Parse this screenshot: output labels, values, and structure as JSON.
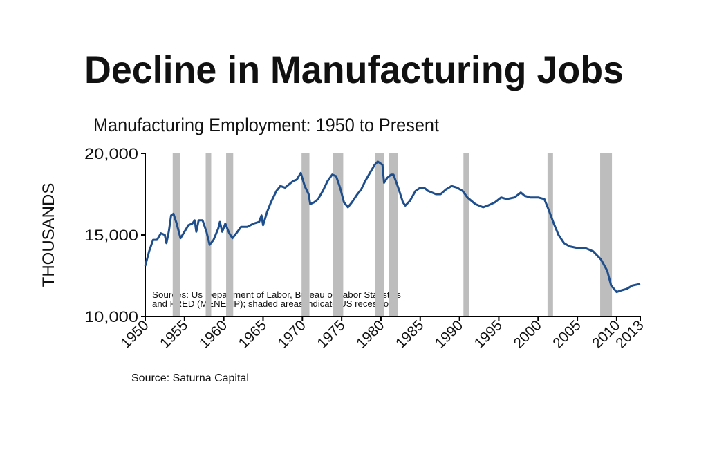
{
  "chart_data": {
    "type": "line",
    "title": "Decline in Manufacturing Jobs",
    "subtitle": "Manufacturing Employment: 1950 to Present",
    "y_label": "THOUSANDS",
    "note": [
      "Sources: Us Department of Labor, Bureau of Labor Statistics",
      "and FRED (MENEMP); shaded areas indicate US recessions"
    ],
    "source": "Source: Saturna Capital",
    "xlim": [
      1950,
      2013
    ],
    "xticks": [
      1950,
      1955,
      1960,
      1965,
      1970,
      1975,
      1980,
      1985,
      1990,
      1995,
      2000,
      2005,
      2010,
      2013
    ],
    "ylim": [
      10000,
      20000
    ],
    "yticks": [
      {
        "value": 10000,
        "label": "10,000"
      },
      {
        "value": 15000,
        "label": "15,000"
      },
      {
        "value": 20000,
        "label": "20,000"
      }
    ],
    "recession_color": "#bdbdbd",
    "recessions": [
      [
        1953.5,
        1954.4
      ],
      [
        1957.7,
        1958.4
      ],
      [
        1960.3,
        1961.2
      ],
      [
        1969.9,
        1970.9
      ],
      [
        1973.9,
        1975.2
      ],
      [
        1979.3,
        1980.4
      ],
      [
        1981.0,
        1982.2
      ],
      [
        1990.5,
        1991.2
      ],
      [
        2001.2,
        2001.9
      ],
      [
        2007.9,
        2009.4
      ]
    ],
    "x": [
      1950,
      1950.5,
      1951,
      1951.5,
      1952,
      1952.5,
      1952.7,
      1953,
      1953.3,
      1953.6,
      1954,
      1954.5,
      1955,
      1955.5,
      1956,
      1956.3,
      1956.5,
      1956.8,
      1957.3,
      1957.8,
      1958.2,
      1958.7,
      1959.3,
      1959.5,
      1959.8,
      1960.2,
      1960.7,
      1961.1,
      1961.6,
      1962.2,
      1963,
      1963.8,
      1964.5,
      1964.8,
      1965,
      1965.5,
      1966,
      1966.7,
      1967.2,
      1967.8,
      1968.3,
      1968.8,
      1969.3,
      1969.8,
      1970.3,
      1970.8,
      1971,
      1971.5,
      1972,
      1972.6,
      1973.2,
      1973.8,
      1974.3,
      1974.8,
      1975.3,
      1975.8,
      1976.3,
      1977,
      1977.5,
      1978,
      1978.6,
      1979.2,
      1979.6,
      1980.2,
      1980.4,
      1980.8,
      1981.3,
      1981.6,
      1982.2,
      1982.8,
      1983.1,
      1983.7,
      1984.4,
      1985,
      1985.5,
      1986,
      1987,
      1987.6,
      1988.3,
      1989,
      1989.7,
      1990.4,
      1991,
      1992,
      1993,
      1993.6,
      1994.5,
      1995.3,
      1996,
      1997,
      1997.8,
      1998.3,
      1999,
      2000,
      2000.8,
      2001.3,
      2002,
      2002.6,
      2003.3,
      2004,
      2005,
      2006,
      2007,
      2008,
      2008.8,
      2009.3,
      2010,
      2010.6,
      2011.3,
      2012,
      2013
    ],
    "series": [
      {
        "name": "Manufacturing Employment",
        "color": "#1f4e8c",
        "values": [
          13100,
          14000,
          14700,
          14700,
          15100,
          15000,
          14500,
          15200,
          16200,
          16300,
          15700,
          14800,
          15200,
          15600,
          15700,
          15900,
          15200,
          15900,
          15900,
          15200,
          14400,
          14700,
          15400,
          15800,
          15200,
          15700,
          15100,
          14800,
          15100,
          15500,
          15500,
          15700,
          15800,
          16200,
          15600,
          16400,
          17000,
          17700,
          18000,
          17900,
          18100,
          18300,
          18400,
          18800,
          18000,
          17500,
          16900,
          17000,
          17200,
          17700,
          18300,
          18700,
          18600,
          17900,
          17000,
          16700,
          17000,
          17500,
          17800,
          18300,
          18800,
          19300,
          19500,
          19300,
          18200,
          18500,
          18700,
          18700,
          17900,
          17000,
          16800,
          17100,
          17700,
          17900,
          17900,
          17700,
          17500,
          17500,
          17800,
          18000,
          17900,
          17700,
          17300,
          16900,
          16700,
          16800,
          17000,
          17300,
          17200,
          17300,
          17600,
          17400,
          17300,
          17300,
          17200,
          16600,
          15700,
          15000,
          14500,
          14300,
          14200,
          14200,
          14000,
          13500,
          12800,
          11900,
          11500,
          11600,
          11700,
          11900,
          12000
        ]
      }
    ]
  }
}
